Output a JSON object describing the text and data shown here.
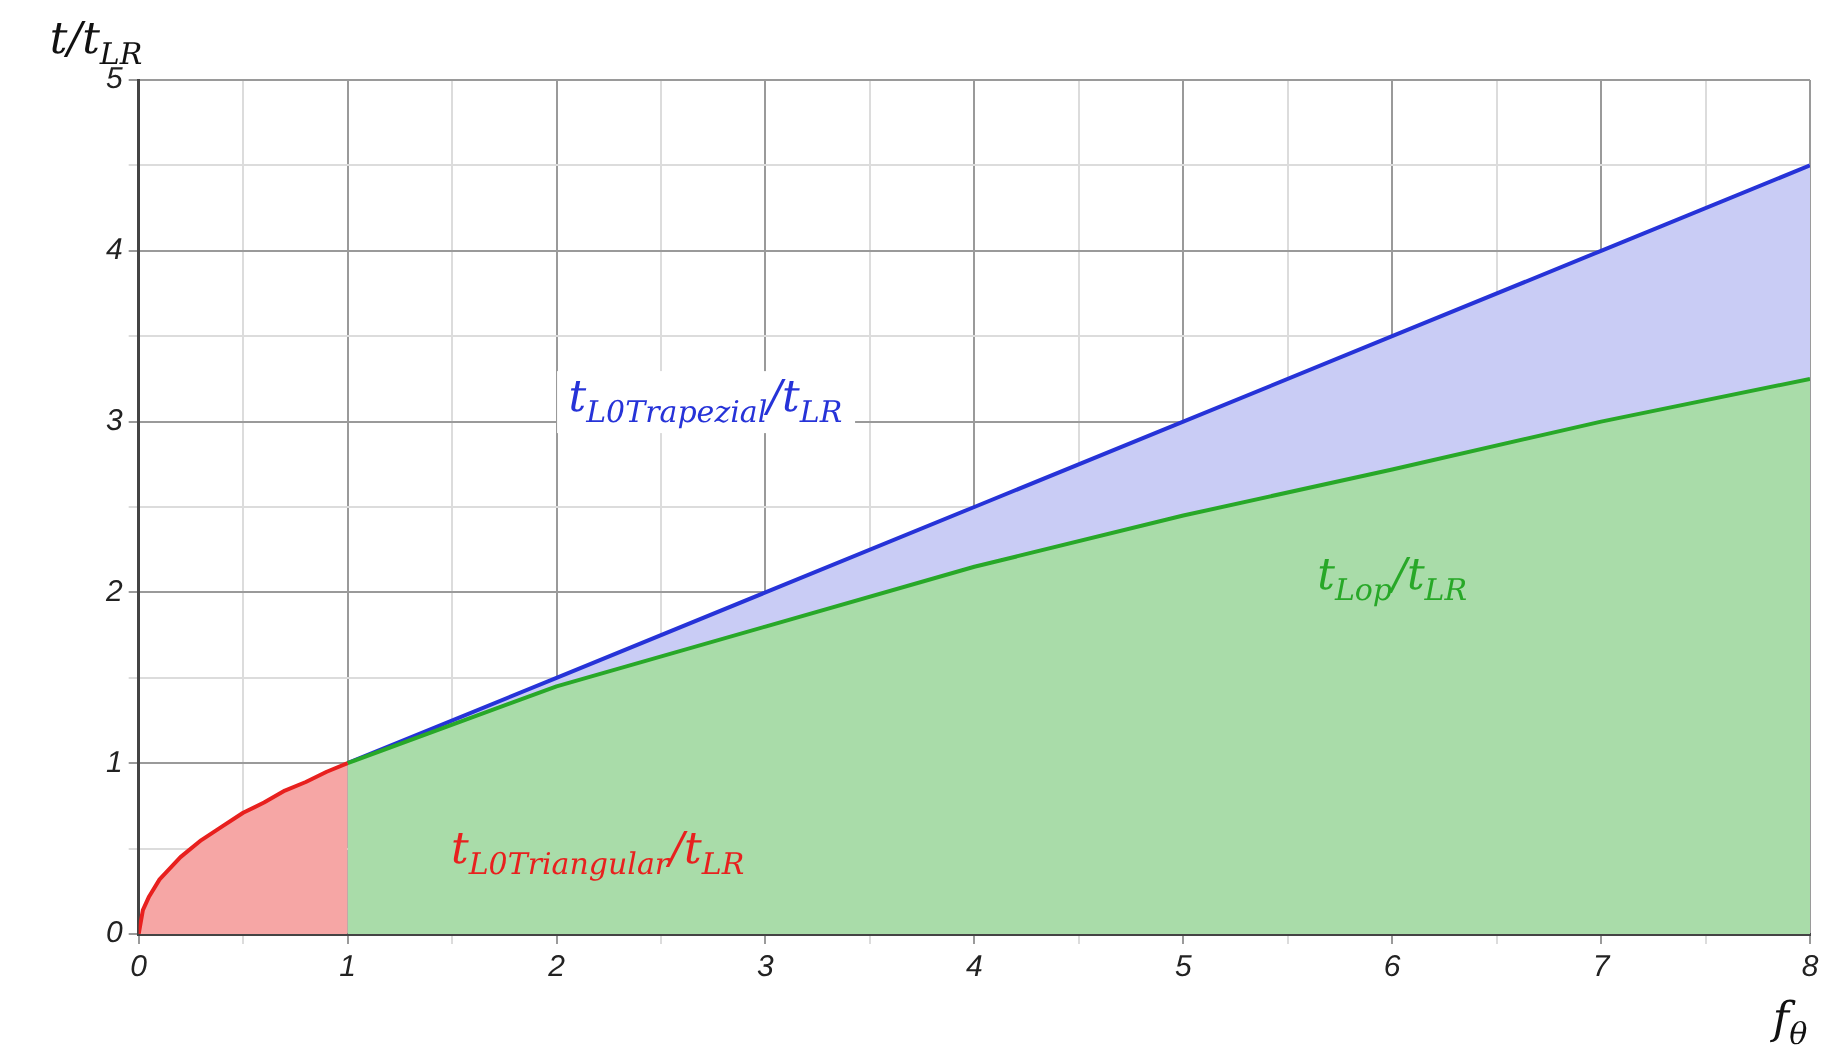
{
  "chart_data": {
    "type": "area",
    "ylabel": "t/t$_{LR}$",
    "xlabel": "f$_{θ}$",
    "xlim": [
      0,
      8
    ],
    "ylim": [
      0,
      5
    ],
    "xticks": [
      0,
      {
        "value": 0.5,
        "label": null
      },
      1,
      {
        "value": 1.5,
        "label": null
      },
      2,
      {
        "value": 2.5,
        "label": null
      },
      3,
      {
        "value": 3.5,
        "label": null
      },
      4,
      {
        "value": 4.5,
        "label": null
      },
      5,
      {
        "value": 5.5,
        "label": null
      },
      6,
      {
        "value": 6.5,
        "label": null
      },
      7,
      {
        "value": 7.5,
        "label": null
      },
      8
    ],
    "yticks": [
      0,
      {
        "value": 0.5,
        "label": null
      },
      1,
      {
        "value": 1.5,
        "label": null
      },
      2,
      {
        "value": 2.5,
        "label": null
      },
      3,
      {
        "value": 3.5,
        "label": null
      },
      4,
      {
        "value": 4.5,
        "label": null
      },
      5
    ],
    "grid": true,
    "series": [
      {
        "name": "t$_{L0Trapezial}$/t$_{LR}$",
        "color": "#2633d8",
        "x": [
          1,
          2,
          3,
          4,
          5,
          6,
          7,
          8
        ],
        "values": [
          1,
          1.5,
          2,
          2.5,
          3,
          3.5,
          4,
          4.5
        ]
      },
      {
        "name": "t$_{Lop}$/t$_{LR}$",
        "color": "#28a828",
        "x": [
          1,
          2,
          3,
          4,
          5,
          6,
          7,
          8
        ],
        "values": [
          1,
          1.45,
          1.8,
          2.15,
          2.45,
          2.72,
          3,
          3.25
        ]
      },
      {
        "name": "t$_{L0Triangular}$/t$_{LR}$",
        "color": "#e8201e",
        "x": [
          0,
          0.02,
          0.05,
          0.1,
          0.2,
          0.3,
          0.4,
          0.5,
          0.6,
          0.7,
          0.8,
          0.9,
          1
        ],
        "values": [
          0,
          0.14,
          0.22,
          0.32,
          0.45,
          0.55,
          0.63,
          0.71,
          0.77,
          0.84,
          0.89,
          0.95,
          1
        ]
      }
    ]
  }
}
